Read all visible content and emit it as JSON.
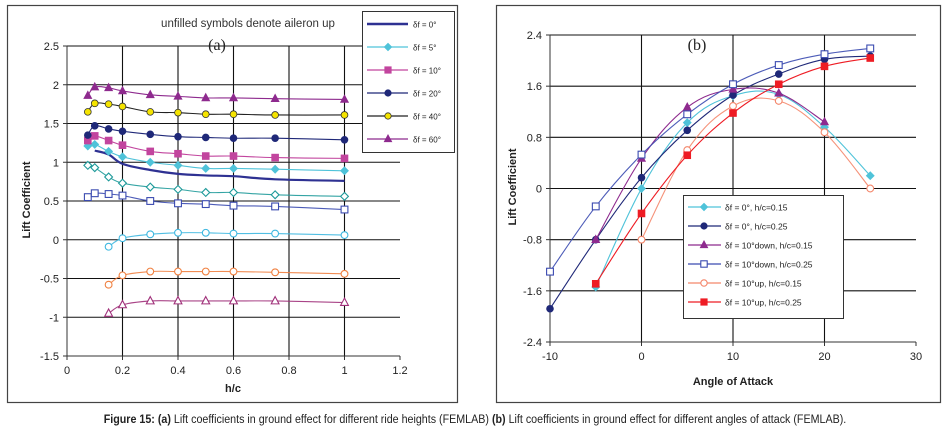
{
  "caption": {
    "figure_label": "Figure 15:",
    "part_a_label": "(a)",
    "part_a_text": "Lift coefficients in ground effect for different ride heights (FEMLAB)",
    "part_b_label": "(b)",
    "part_b_text": "Lift coefficients in ground effect for different angles of attack (FEMLAB)."
  },
  "chart_data": [
    {
      "type": "line",
      "panel_label": "(a)",
      "annotation": "unfilled symbols denote aileron up",
      "xlabel": "h/c",
      "ylabel": "Lift Coefficient",
      "xlim": [
        0,
        1.2
      ],
      "ylim": [
        -1.5,
        2.5
      ],
      "xticks": [
        "0",
        "0.2",
        "0.4",
        "0.6",
        "0.8",
        "1",
        "1.2"
      ],
      "yticks": [
        "-1.5",
        "-1",
        "-0.5",
        "0",
        "0.5",
        "1",
        "1.5",
        "2",
        "2.5"
      ],
      "xtick_values": [
        0,
        0.2,
        0.4,
        0.6,
        0.8,
        1,
        1.2
      ],
      "ytick_values": [
        -1.5,
        -1,
        -0.5,
        0,
        0.5,
        1,
        1.5,
        2,
        2.5
      ],
      "grid": true,
      "legend_position": "top-right",
      "series": [
        {
          "name": "δf = 0°",
          "legend": true,
          "color": "#2e3192",
          "marker": "none",
          "filled": true,
          "x": [
            0.1,
            0.15,
            0.2,
            0.3,
            0.4,
            0.5,
            0.6,
            0.75,
            1.0
          ],
          "y": [
            1.15,
            1.1,
            0.98,
            0.9,
            0.85,
            0.83,
            0.82,
            0.78,
            0.76
          ]
        },
        {
          "name": "δf = 5°",
          "legend": true,
          "color": "#4fc3d9",
          "marker": "diamond",
          "filled": true,
          "x": [
            0.075,
            0.1,
            0.15,
            0.2,
            0.3,
            0.4,
            0.5,
            0.6,
            0.75,
            1.0
          ],
          "y": [
            1.21,
            1.23,
            1.14,
            1.07,
            1.0,
            0.96,
            0.92,
            0.92,
            0.91,
            0.89
          ]
        },
        {
          "name": "δf = 10°",
          "legend": true,
          "color": "#c2459e",
          "marker": "square",
          "filled": true,
          "x": [
            0.075,
            0.1,
            0.15,
            0.2,
            0.3,
            0.4,
            0.5,
            0.6,
            0.75,
            1.0
          ],
          "y": [
            1.28,
            1.34,
            1.28,
            1.22,
            1.14,
            1.11,
            1.08,
            1.08,
            1.06,
            1.05
          ]
        },
        {
          "name": "δf = 20°",
          "legend": true,
          "color": "#1f2878",
          "marker": "circle",
          "filled": true,
          "x": [
            0.075,
            0.1,
            0.15,
            0.2,
            0.3,
            0.4,
            0.5,
            0.6,
            0.75,
            1.0
          ],
          "y": [
            1.35,
            1.47,
            1.43,
            1.4,
            1.36,
            1.33,
            1.32,
            1.31,
            1.31,
            1.29
          ]
        },
        {
          "name": "δf = 40°",
          "legend": true,
          "color": "#222222",
          "fill": "#f5e400",
          "marker": "circle",
          "filled": true,
          "x": [
            0.075,
            0.1,
            0.15,
            0.2,
            0.3,
            0.4,
            0.5,
            0.6,
            0.75,
            1.0
          ],
          "y": [
            1.65,
            1.76,
            1.75,
            1.72,
            1.65,
            1.64,
            1.62,
            1.62,
            1.61,
            1.61
          ]
        },
        {
          "name": "δf = 60°",
          "legend": true,
          "color": "#8e2a8e",
          "marker": "triangle",
          "filled": true,
          "x": [
            0.075,
            0.1,
            0.15,
            0.2,
            0.3,
            0.4,
            0.5,
            0.6,
            0.75,
            1.0
          ],
          "y": [
            1.86,
            1.97,
            1.96,
            1.92,
            1.87,
            1.85,
            1.83,
            1.83,
            1.82,
            1.81
          ]
        },
        {
          "name": "δf = 5° up",
          "legend": false,
          "color": "#1e9a9a",
          "marker": "diamond",
          "filled": false,
          "x": [
            0.075,
            0.1,
            0.15,
            0.2,
            0.3,
            0.4,
            0.5,
            0.6,
            0.75,
            1.0
          ],
          "y": [
            0.96,
            0.93,
            0.81,
            0.73,
            0.68,
            0.65,
            0.61,
            0.61,
            0.58,
            0.56
          ]
        },
        {
          "name": "δf = 10° up",
          "legend": false,
          "color": "#3a4ab0",
          "marker": "square",
          "filled": false,
          "x": [
            0.075,
            0.1,
            0.15,
            0.2,
            0.3,
            0.4,
            0.5,
            0.6,
            0.75,
            1.0
          ],
          "y": [
            0.55,
            0.6,
            0.59,
            0.57,
            0.5,
            0.47,
            0.46,
            0.44,
            0.43,
            0.39
          ]
        },
        {
          "name": "δf = 20° up",
          "legend": false,
          "color": "#3fb8e0",
          "marker": "circle",
          "filled": false,
          "x": [
            0.15,
            0.2,
            0.3,
            0.4,
            0.5,
            0.6,
            0.75,
            1.0
          ],
          "y": [
            -0.09,
            0.02,
            0.07,
            0.09,
            0.09,
            0.08,
            0.08,
            0.06
          ]
        },
        {
          "name": "δf = 40° up",
          "legend": false,
          "color": "#f08040",
          "marker": "circle",
          "filled": false,
          "x": [
            0.15,
            0.2,
            0.3,
            0.4,
            0.5,
            0.6,
            0.75,
            1.0
          ],
          "y": [
            -0.58,
            -0.46,
            -0.41,
            -0.41,
            -0.41,
            -0.41,
            -0.42,
            -0.44
          ]
        },
        {
          "name": "δf = 60° up",
          "legend": false,
          "color": "#a0307a",
          "marker": "triangle",
          "filled": false,
          "x": [
            0.15,
            0.2,
            0.3,
            0.4,
            0.5,
            0.6,
            0.75,
            1.0
          ],
          "y": [
            -0.95,
            -0.84,
            -0.79,
            -0.79,
            -0.79,
            -0.79,
            -0.79,
            -0.81
          ]
        }
      ]
    },
    {
      "type": "line",
      "panel_label": "(b)",
      "xlabel": "Angle of Attack",
      "ylabel": "Lift Coefficient",
      "xlim": [
        -10,
        30
      ],
      "ylim": [
        -2.4,
        2.4
      ],
      "xticks": [
        "-10",
        "0",
        "10",
        "20",
        "30"
      ],
      "yticks": [
        "-2.4",
        "-1.6",
        "-0.8",
        "0",
        "0.8",
        "1.6",
        "2.4"
      ],
      "xtick_values": [
        -10,
        0,
        10,
        20,
        30
      ],
      "ytick_values": [
        -2.4,
        -1.6,
        -0.8,
        0,
        0.8,
        1.6,
        2.4
      ],
      "grid": true,
      "legend_position": "lower-center",
      "series": [
        {
          "name": "δf = 0°, h/c=0.15",
          "color": "#4fc3d9",
          "marker": "diamond",
          "filled": true,
          "x": [
            -5,
            0,
            5,
            10,
            15,
            20,
            25
          ],
          "y": [
            -1.54,
            0.0,
            1.03,
            1.45,
            1.47,
            0.96,
            0.2
          ]
        },
        {
          "name": "δf = 0°, h/c=0.25",
          "color": "#1f2878",
          "marker": "circle",
          "filled": true,
          "x": [
            -10,
            -5,
            0,
            5,
            10,
            15,
            20,
            25
          ],
          "y": [
            -1.88,
            -0.8,
            0.17,
            0.91,
            1.46,
            1.79,
            2.02,
            2.07
          ]
        },
        {
          "name": "δf = 10°down, h/c=0.15",
          "color": "#8e2a8e",
          "marker": "triangle",
          "filled": true,
          "x": [
            -5,
            0,
            5,
            10,
            15,
            20
          ],
          "y": [
            -0.8,
            0.47,
            1.27,
            1.55,
            1.49,
            1.04
          ]
        },
        {
          "name": "δf = 10°down, h/c=0.25",
          "color": "#3a4ab0",
          "marker": "square",
          "filled": false,
          "x": [
            -10,
            -5,
            0,
            5,
            10,
            15,
            20,
            25
          ],
          "y": [
            -1.3,
            -0.28,
            0.53,
            1.16,
            1.63,
            1.93,
            2.1,
            2.19
          ]
        },
        {
          "name": "δf = 10°up, h/c=0.15",
          "color": "#f4866a",
          "marker": "circle",
          "filled": false,
          "x": [
            0,
            5,
            10,
            15,
            20,
            25
          ],
          "y": [
            -0.8,
            0.6,
            1.29,
            1.37,
            0.88,
            0.0
          ]
        },
        {
          "name": "δf = 10°up, h/c=0.25",
          "color": "#ee1c24",
          "marker": "square",
          "filled": true,
          "x": [
            -5,
            0,
            5,
            10,
            15,
            20,
            25
          ],
          "y": [
            -1.49,
            -0.39,
            0.52,
            1.18,
            1.63,
            1.91,
            2.04
          ]
        }
      ]
    }
  ]
}
